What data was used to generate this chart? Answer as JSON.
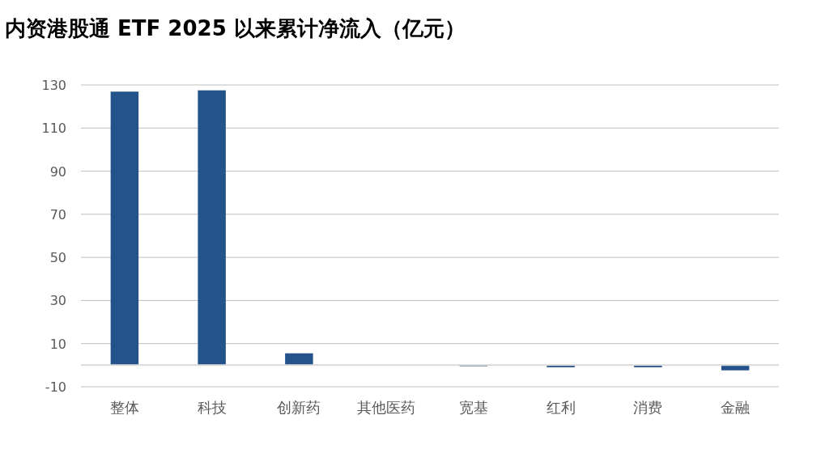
{
  "chart_data": {
    "type": "bar",
    "title": "内资港股通 ETF 2025 以来累计净流入（亿元）",
    "categories": [
      "整体",
      "科技",
      "创新药",
      "其他医药",
      "宽基",
      "红利",
      "消费",
      "金融"
    ],
    "series": [
      {
        "color": "#23538a",
        "values": [
          126.9,
          127.5,
          5.5,
          0,
          -0.5,
          -1,
          -1,
          -2.4
        ]
      }
    ],
    "ylim": [
      -10,
      130
    ],
    "yticks": [
      -10,
      10,
      30,
      50,
      70,
      90,
      110,
      130
    ],
    "grid": "y"
  }
}
